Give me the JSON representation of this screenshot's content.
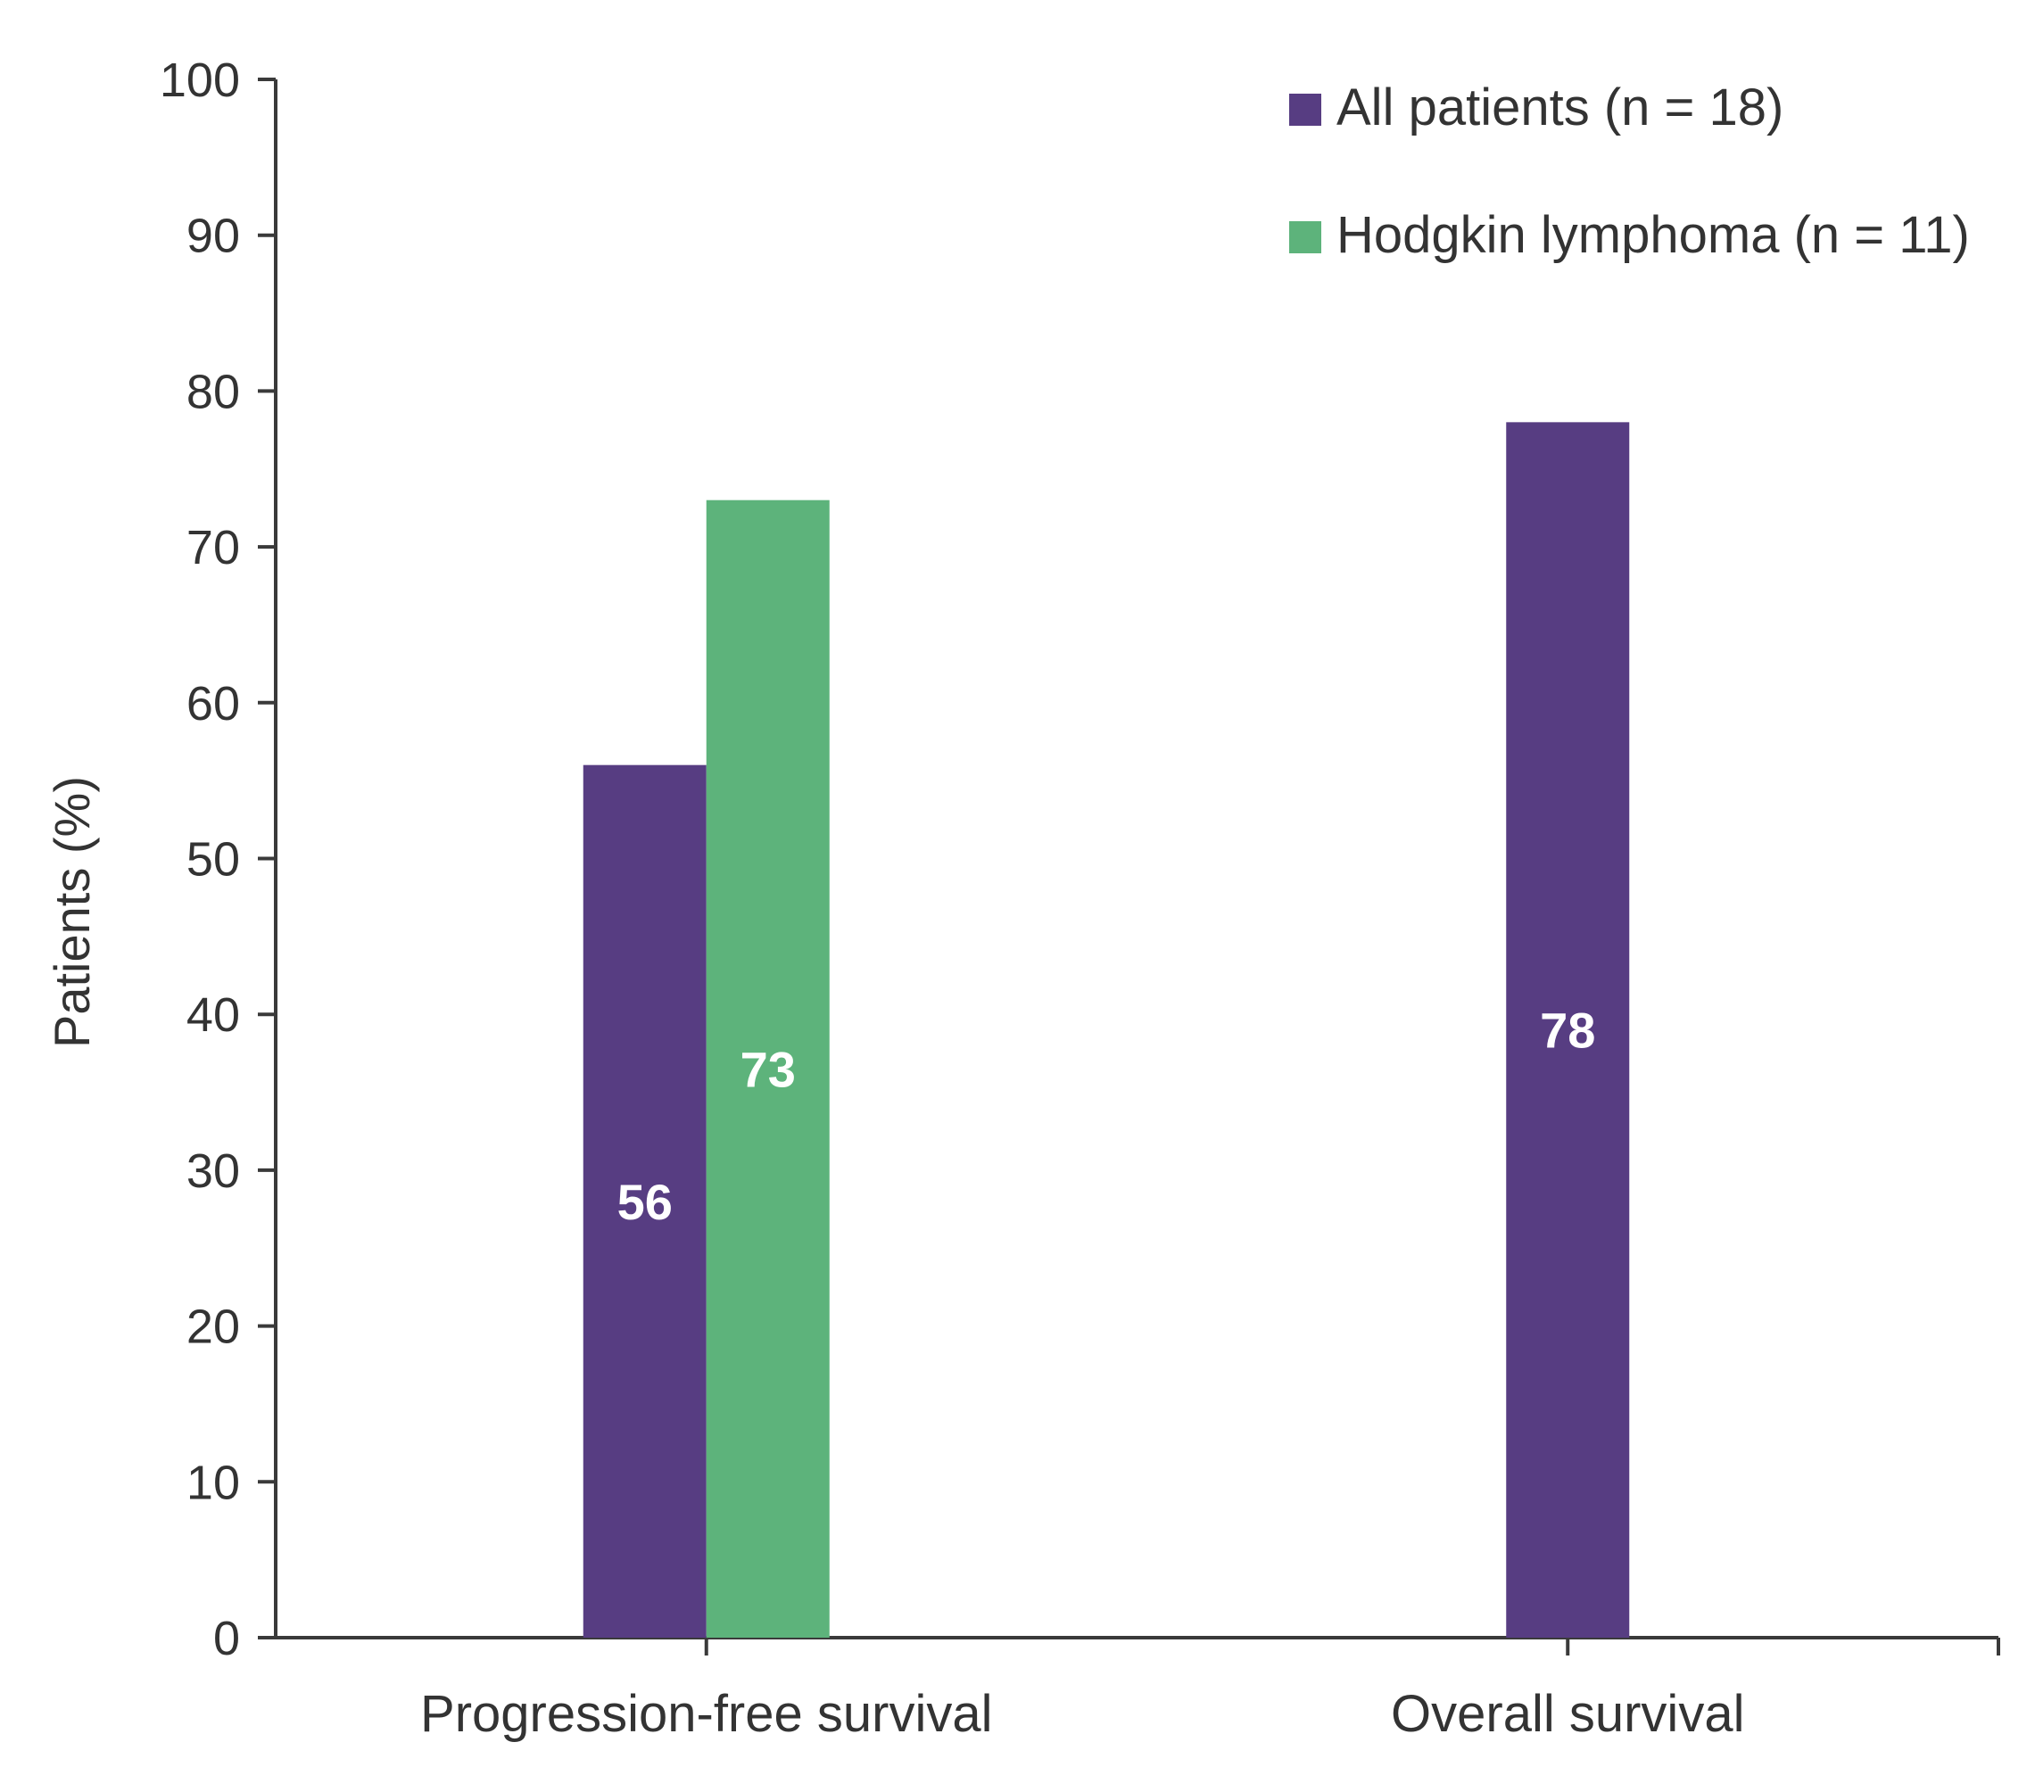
{
  "chart_data": {
    "type": "bar",
    "categories": [
      "Progression-free survival",
      "Overall survival"
    ],
    "series": [
      {
        "name": "All patients (n = 18)",
        "color": "#573d82",
        "values": [
          56,
          78
        ]
      },
      {
        "name": "Hodgkin lymphoma (n = 11)",
        "color": "#5db37b",
        "values": [
          73,
          null
        ]
      }
    ],
    "ylabel": "Patients (%)",
    "ylim": [
      0,
      100
    ],
    "yticks": [
      0,
      10,
      20,
      30,
      40,
      50,
      60,
      70,
      80,
      90,
      100
    ],
    "grid": false,
    "legend_position": "top-right",
    "data_labels": true
  }
}
